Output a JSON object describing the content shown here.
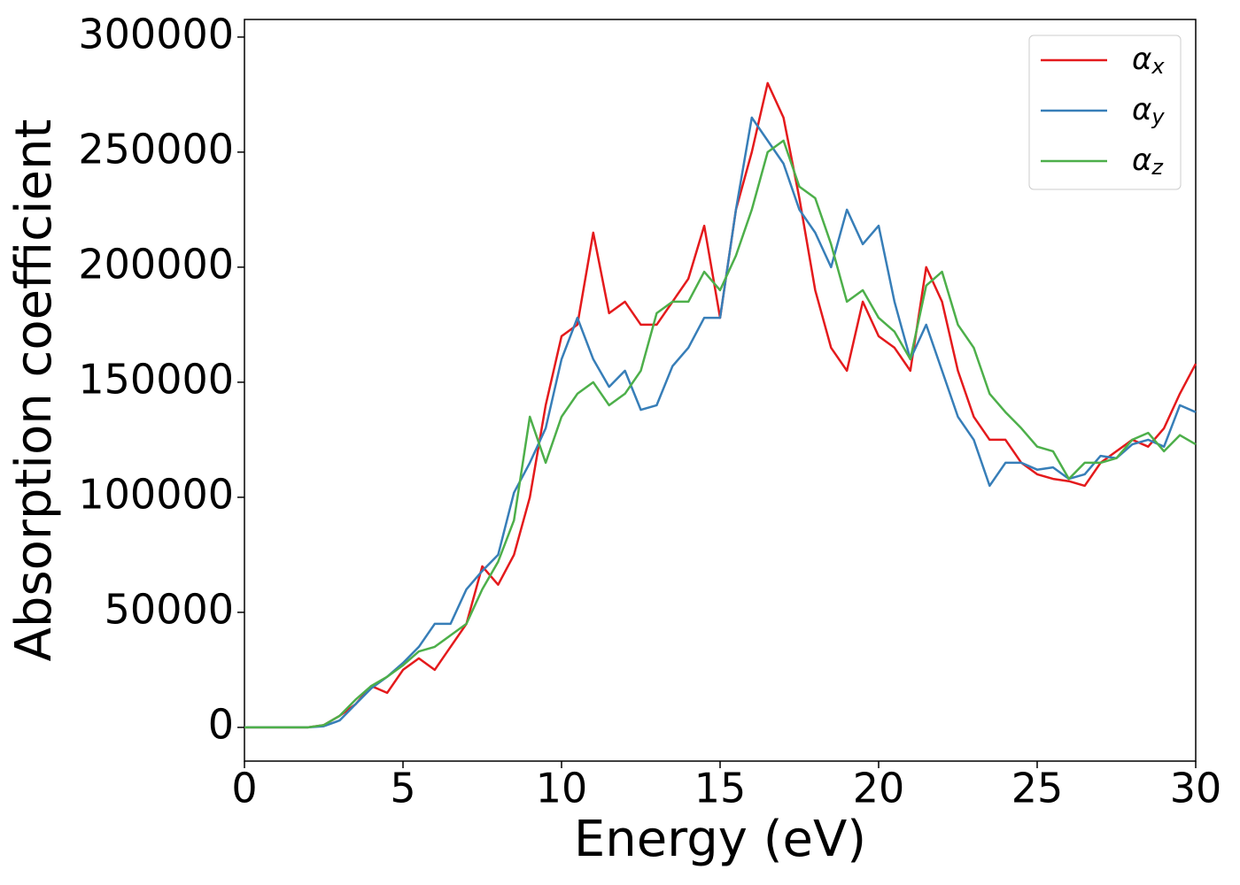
{
  "chart_data": {
    "type": "line",
    "xlabel": "Energy (eV)",
    "ylabel": "Absorption coefficient",
    "x": [
      0,
      0.5,
      1,
      1.5,
      2,
      2.5,
      3,
      3.5,
      4,
      4.5,
      5,
      5.5,
      6,
      6.5,
      7,
      7.5,
      8,
      8.5,
      9,
      9.5,
      10,
      10.5,
      11,
      11.5,
      12,
      12.5,
      13,
      13.5,
      14,
      14.5,
      15,
      15.5,
      16,
      16.5,
      17,
      17.5,
      18,
      18.5,
      19,
      19.5,
      20,
      20.5,
      21,
      21.5,
      22,
      22.5,
      23,
      23.5,
      24,
      24.5,
      25,
      25.5,
      26,
      26.5,
      27,
      27.5,
      28,
      28.5,
      29,
      29.5,
      30
    ],
    "series": [
      {
        "name": "αx",
        "color": "#e41a1c",
        "values": [
          0,
          0,
          0,
          0,
          0,
          1000,
          5000,
          10000,
          18000,
          15000,
          25000,
          30000,
          25000,
          35000,
          45000,
          70000,
          62000,
          75000,
          100000,
          140000,
          170000,
          175000,
          215000,
          180000,
          185000,
          175000,
          175000,
          185000,
          195000,
          218000,
          178000,
          225000,
          250000,
          280000,
          265000,
          230000,
          190000,
          165000,
          155000,
          185000,
          170000,
          165000,
          155000,
          200000,
          185000,
          155000,
          135000,
          125000,
          125000,
          115000,
          110000,
          108000,
          107000,
          105000,
          115000,
          120000,
          125000,
          122000,
          130000,
          145000,
          158000
        ]
      },
      {
        "name": "αy",
        "color": "#377eb8",
        "values": [
          0,
          0,
          0,
          0,
          0,
          500,
          3000,
          10000,
          17000,
          22000,
          28000,
          35000,
          45000,
          45000,
          60000,
          68000,
          75000,
          102000,
          115000,
          130000,
          160000,
          178000,
          160000,
          148000,
          155000,
          138000,
          140000,
          157000,
          165000,
          178000,
          178000,
          225000,
          265000,
          255000,
          245000,
          225000,
          215000,
          200000,
          225000,
          210000,
          218000,
          185000,
          160000,
          175000,
          155000,
          135000,
          125000,
          105000,
          115000,
          115000,
          112000,
          113000,
          108000,
          110000,
          118000,
          117000,
          123000,
          125000,
          122000,
          140000,
          137000
        ]
      },
      {
        "name": "αz",
        "color": "#4daf4a",
        "values": [
          0,
          0,
          0,
          0,
          0,
          1000,
          5000,
          12000,
          18000,
          22000,
          27000,
          33000,
          35000,
          40000,
          45000,
          60000,
          72000,
          90000,
          135000,
          115000,
          135000,
          145000,
          150000,
          140000,
          145000,
          155000,
          180000,
          185000,
          185000,
          198000,
          190000,
          205000,
          225000,
          250000,
          255000,
          235000,
          230000,
          210000,
          185000,
          190000,
          178000,
          172000,
          160000,
          192000,
          198000,
          175000,
          165000,
          145000,
          137000,
          130000,
          122000,
          120000,
          108000,
          115000,
          115000,
          117000,
          125000,
          128000,
          120000,
          127000,
          123000
        ]
      }
    ],
    "xlim": [
      0,
      30
    ],
    "xticks": [
      0,
      5,
      10,
      15,
      20,
      25,
      30
    ],
    "ylim": [
      -14650,
      307650
    ],
    "yticks": [
      0,
      50000,
      100000,
      150000,
      200000,
      250000,
      300000
    ],
    "legend": "upper right",
    "grid": false
  }
}
